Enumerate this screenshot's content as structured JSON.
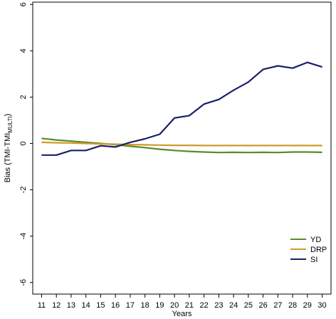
{
  "chart_data": {
    "type": "line",
    "title": "",
    "xlabel": "Years",
    "ylabel": "Bias (TMI-TMI",
    "ylabel_sub": "MULTI",
    "ylabel_suffix": ")",
    "x": [
      11,
      12,
      13,
      14,
      15,
      16,
      17,
      18,
      19,
      20,
      21,
      22,
      23,
      24,
      25,
      26,
      27,
      28,
      29,
      30
    ],
    "xlim": [
      10.4,
      30.6
    ],
    "ylim": [
      -6.5,
      6.1
    ],
    "yticks": [
      -6,
      -4,
      -2,
      0,
      2,
      4,
      6
    ],
    "grid": false,
    "legend_position": "bottom-right",
    "series": [
      {
        "name": "YD",
        "color": "#5a8a2a",
        "values": [
          0.22,
          0.15,
          0.1,
          0.05,
          0.0,
          -0.05,
          -0.12,
          -0.18,
          -0.25,
          -0.3,
          -0.34,
          -0.37,
          -0.39,
          -0.38,
          -0.39,
          -0.38,
          -0.39,
          -0.37,
          -0.37,
          -0.38
        ]
      },
      {
        "name": "DRP",
        "color": "#d09a2a",
        "values": [
          0.05,
          0.03,
          0.02,
          0.0,
          -0.02,
          -0.03,
          -0.05,
          -0.06,
          -0.07,
          -0.08,
          -0.08,
          -0.09,
          -0.09,
          -0.09,
          -0.09,
          -0.09,
          -0.09,
          -0.09,
          -0.09,
          -0.09
        ]
      },
      {
        "name": "SI",
        "color": "#1a1f6e",
        "values": [
          -0.5,
          -0.5,
          -0.3,
          -0.3,
          -0.1,
          -0.15,
          0.05,
          0.2,
          0.4,
          1.1,
          1.2,
          1.7,
          1.9,
          2.3,
          2.65,
          3.2,
          3.35,
          3.25,
          3.5,
          3.3
        ]
      }
    ]
  }
}
